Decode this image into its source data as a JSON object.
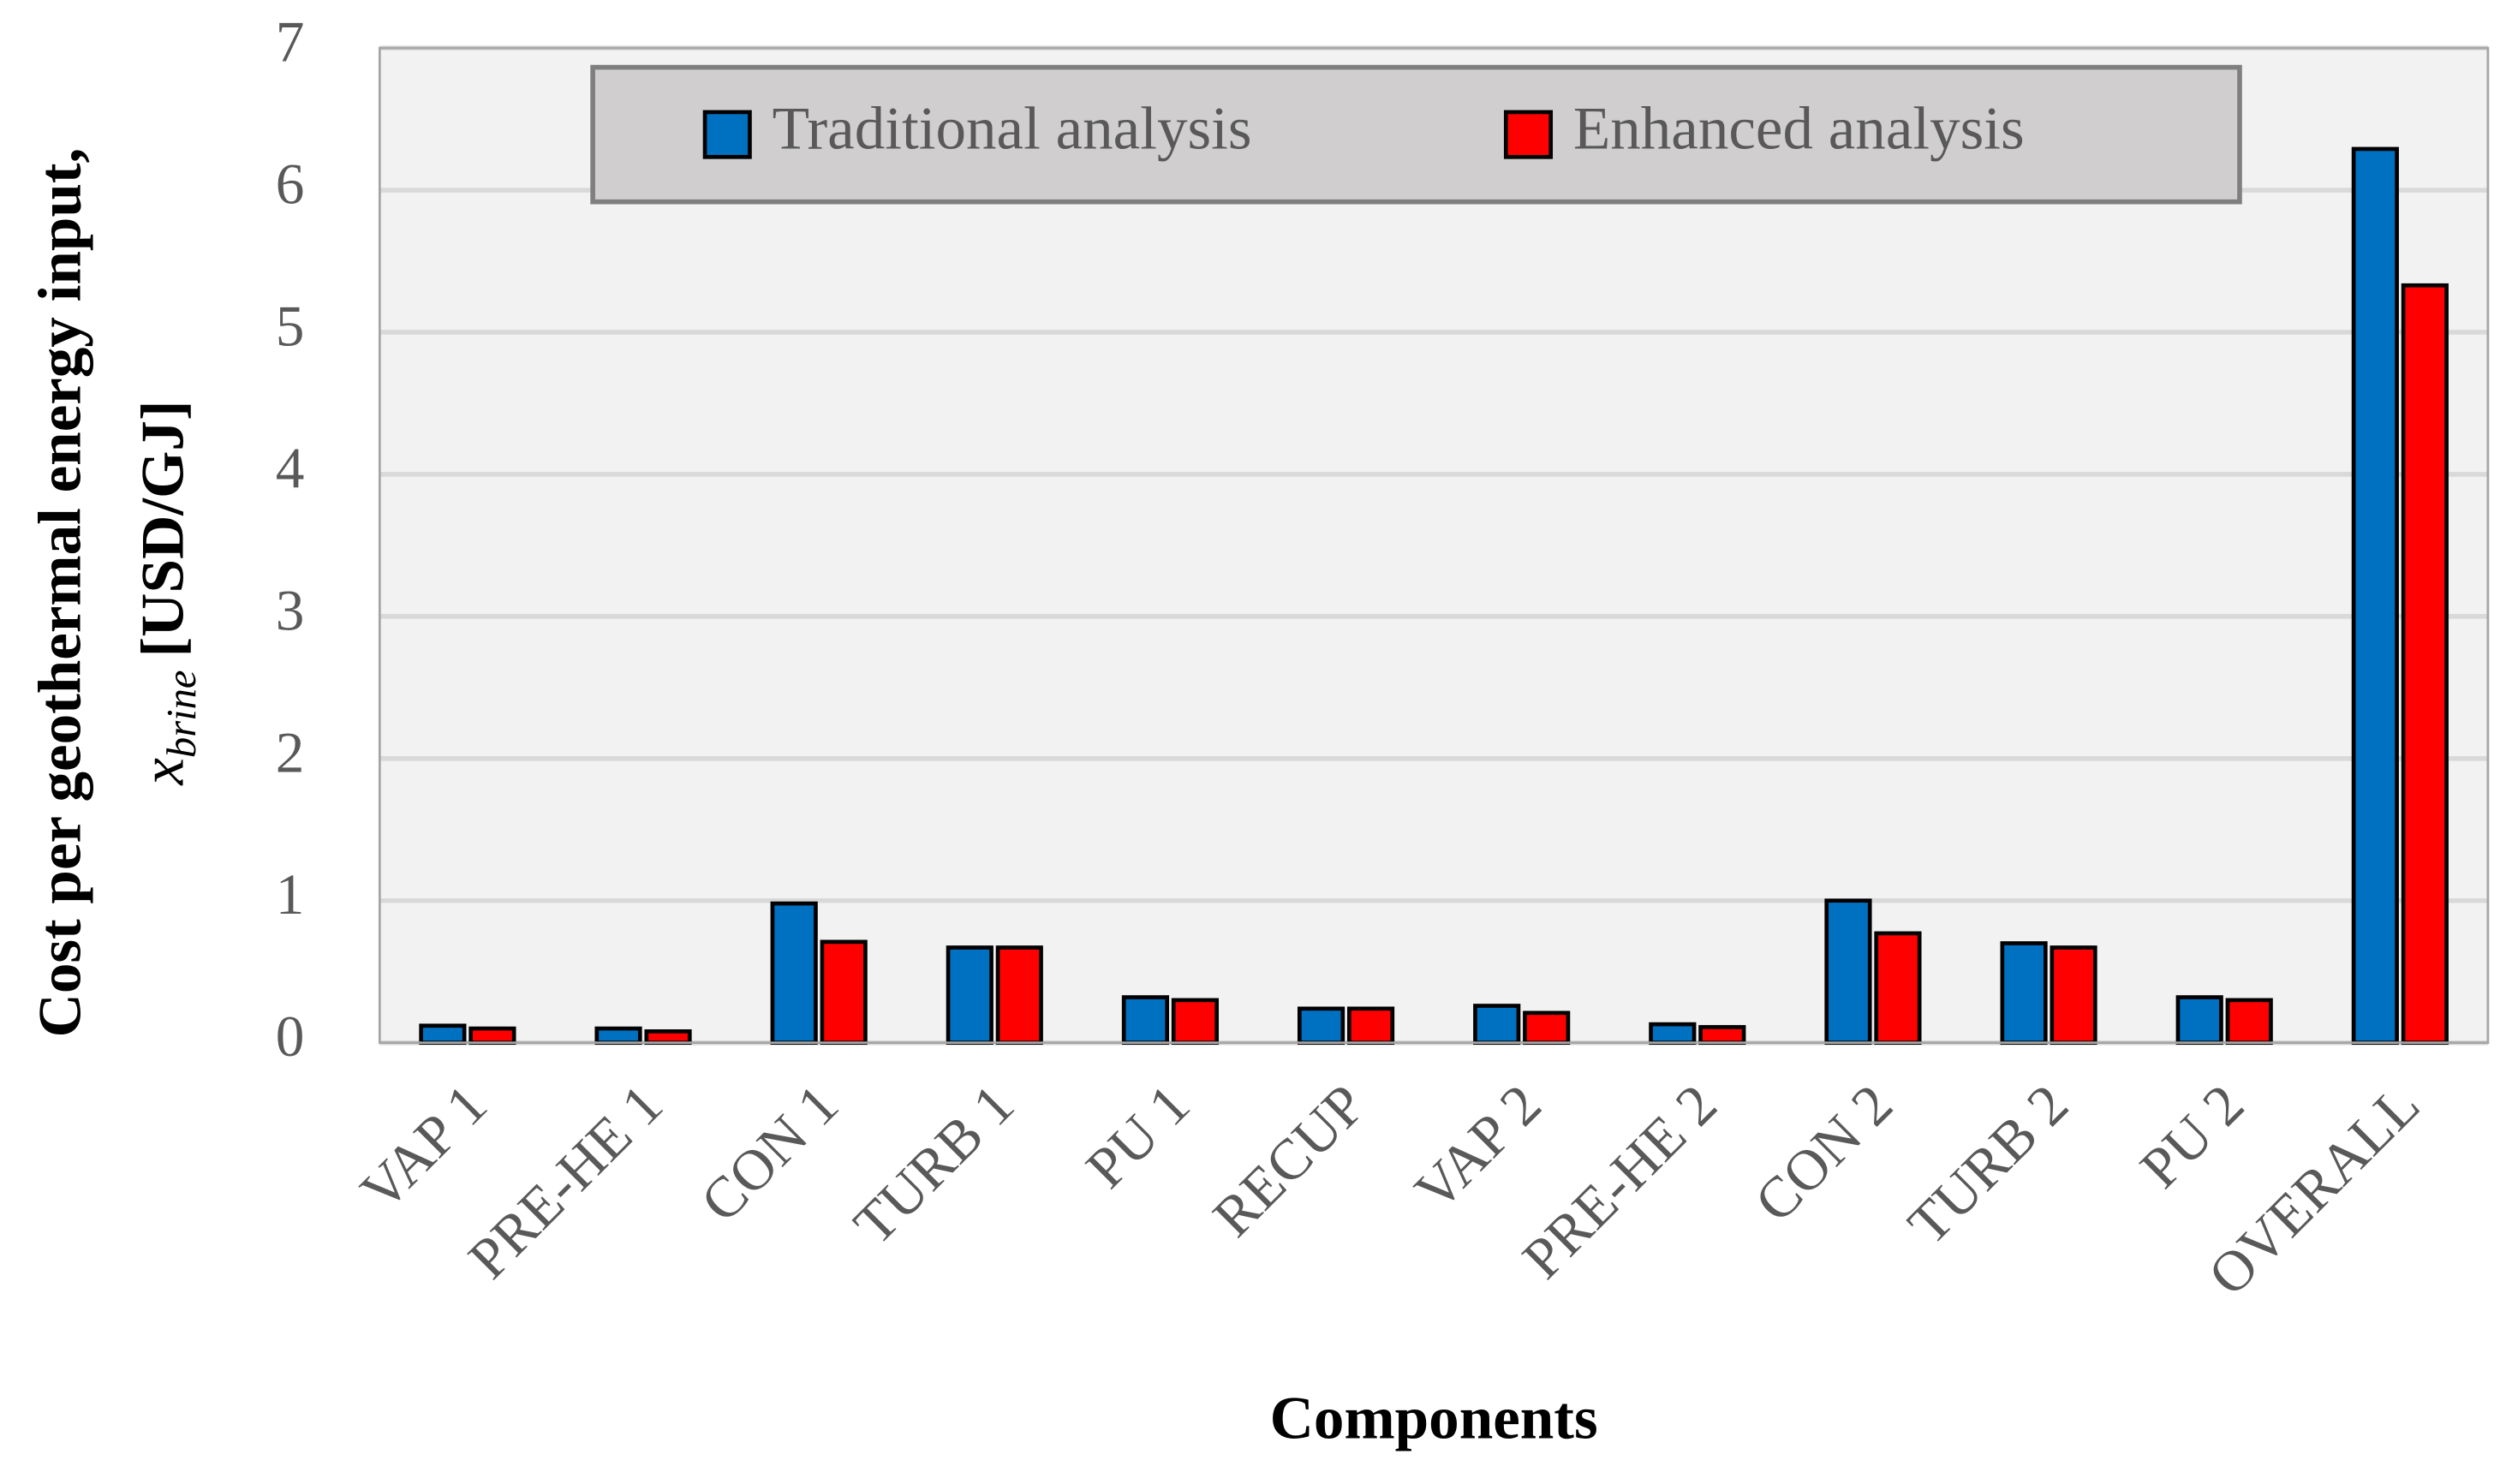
{
  "chart_data": {
    "type": "bar",
    "x_label": "Components",
    "y_label": {
      "line1": "Cost per geothermal energy input,",
      "symbol": "x",
      "subscript": "brine",
      "unit": "[USD/GJ]"
    },
    "categories": [
      "VAP 1",
      "PRE-HE 1",
      "CON 1",
      "TURB 1",
      "PU 1",
      "RECUP",
      "VAP 2",
      "PRE-HE 2",
      "CON 2",
      "TURB 2",
      "PU 2",
      "OVERALL"
    ],
    "series": [
      {
        "name": "Traditional analysis",
        "color": "#0070c0",
        "values": [
          0.12,
          0.1,
          0.98,
          0.67,
          0.32,
          0.24,
          0.26,
          0.13,
          1.0,
          0.7,
          0.32,
          6.29
        ]
      },
      {
        "name": "Enhanced analysis",
        "color": "#ff0000",
        "values": [
          0.1,
          0.08,
          0.71,
          0.67,
          0.3,
          0.24,
          0.21,
          0.11,
          0.77,
          0.67,
          0.3,
          5.33
        ]
      }
    ],
    "ylim": [
      0,
      7
    ],
    "yticks": [
      0,
      1,
      2,
      3,
      4,
      5,
      6,
      7
    ],
    "grid": true,
    "legend": "top"
  }
}
